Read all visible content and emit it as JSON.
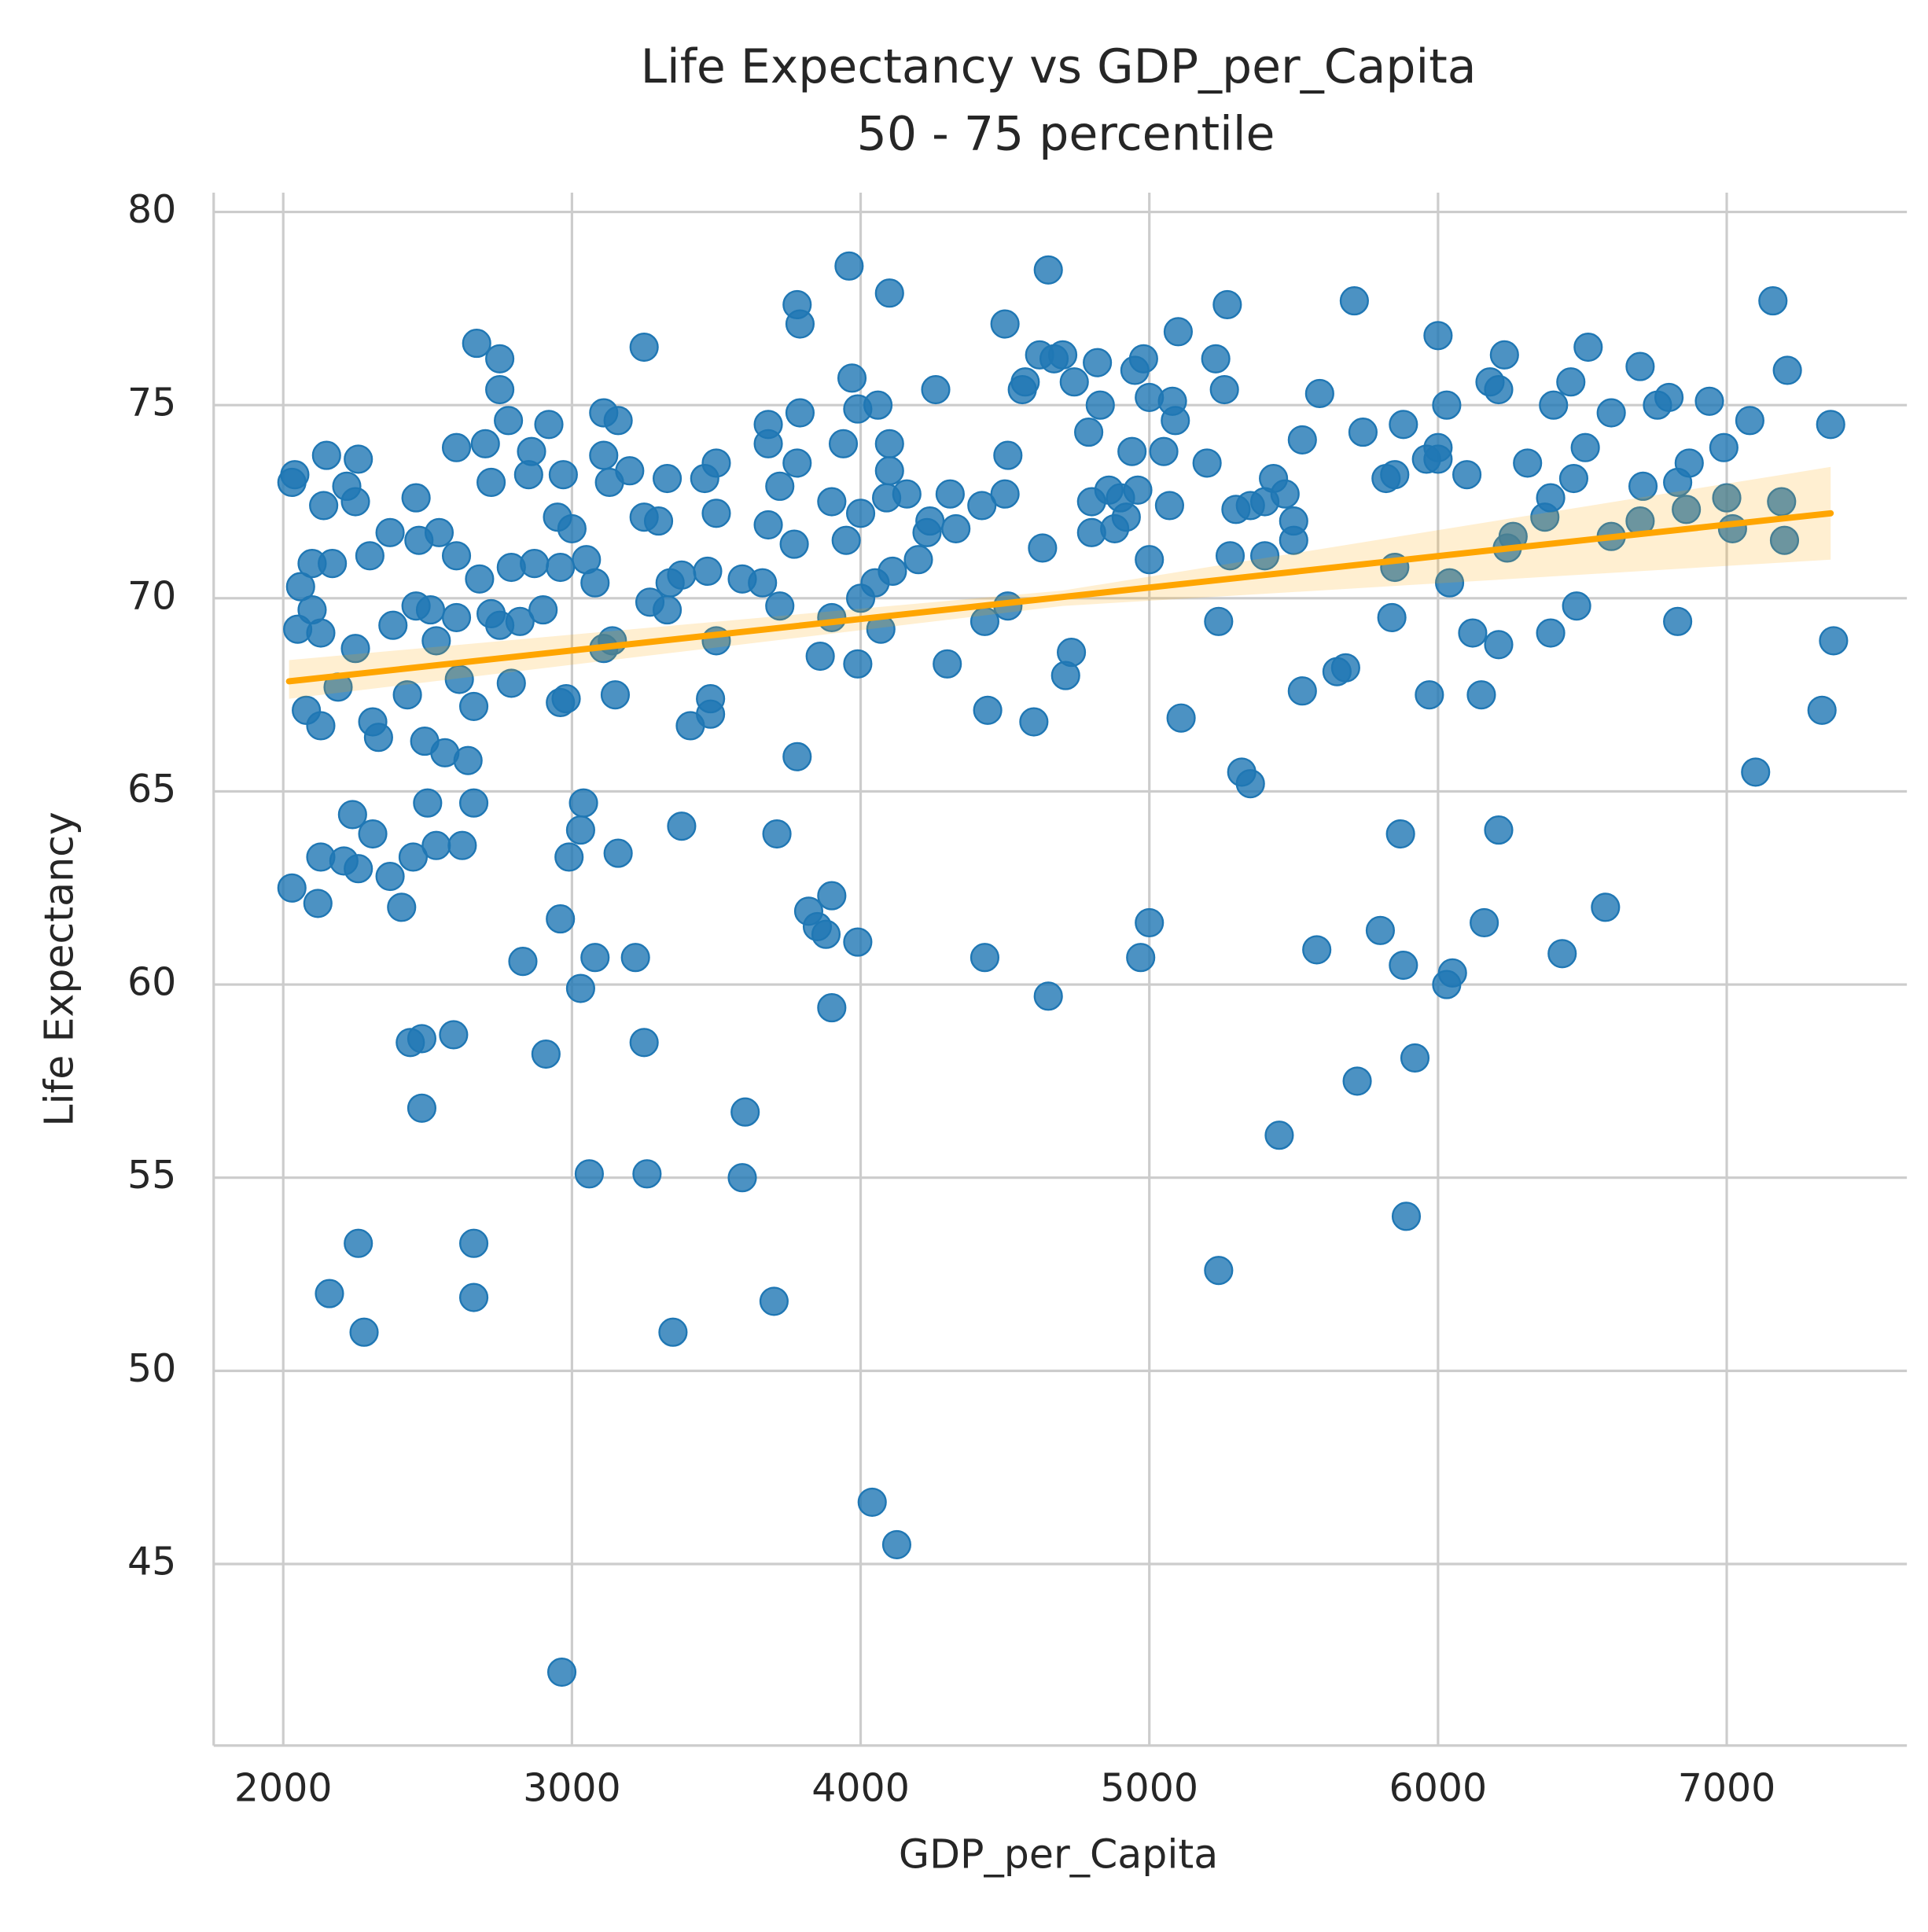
{
  "chart_data": {
    "type": "scatter",
    "title": "Life Expectancy vs GDP_per_Capita",
    "subtitle": "50 - 75 percentile",
    "x_label": "GDP_per_Capita",
    "y_label": "Life Expectancy",
    "color": "#1f77b4",
    "grid": true,
    "xlim": [
      1759,
      7624
    ],
    "ylim": [
      40.3,
      80.5
    ],
    "xticks": [
      2000,
      3000,
      4000,
      5000,
      6000,
      7000
    ],
    "yticks": [
      45,
      50,
      55,
      60,
      65,
      70,
      75,
      80
    ],
    "x": [
      2965,
      4040,
      4125,
      2280,
      2160,
      2660,
      2260,
      2660,
      3350,
      3700,
      5240,
      5890,
      3060,
      3260,
      3590,
      3600,
      5450,
      5720,
      5920,
      2480,
      2440,
      2480,
      2590,
      2910,
      3250,
      3900,
      4650,
      3030,
      6030,
      6050,
      5880,
      2830,
      3080,
      3220,
      4430,
      4970,
      6430,
      5580,
      3990,
      5800,
      6160,
      5000,
      2960,
      3820,
      3850,
      3880,
      3900,
      6580,
      2030,
      2120,
      2410,
      2370,
      2130,
      2210,
      2260,
      2450,
      2530,
      2620,
      2310,
      2240,
      2990,
      3030,
      3160,
      3040,
      3380,
      3710,
      5870,
      6210,
      2500,
      2660,
      5320,
      5350,
      7100,
      3780,
      2640,
      2560,
      2490,
      2330,
      2310,
      2430,
      2130,
      2080,
      2190,
      2660,
      2790,
      2610,
      2960,
      2980,
      3150,
      3410,
      3480,
      3480,
      4440,
      4600,
      5110,
      5530,
      5650,
      5680,
      5970,
      6150,
      7330,
      7370,
      4710,
      4730,
      4300,
      3990,
      3860,
      6210,
      6390,
      6480,
      6120,
      5840,
      5240,
      4430,
      4510,
      6830,
      6040,
      5850,
      5000,
      5280,
      5400,
      5500,
      4630,
      4800,
      4880,
      4200,
      4230,
      4330,
      3950,
      3770,
      3680,
      3720,
      3500,
      3330,
      3110,
      3140,
      3270,
      2900,
      2820,
      2720,
      2750,
      2600,
      2460,
      2510,
      2380,
      2530,
      2250,
      2050,
      2130,
      2100,
      2060,
      2100,
      2170,
      2300,
      2370,
      2470,
      2540,
      2600,
      2680,
      2790,
      2870,
      2960,
      3050,
      3080,
      3340,
      3380,
      3470,
      3590,
      3660,
      4050,
      4110,
      4000,
      3900,
      4070,
      2030,
      2040,
      2150,
      2260,
      2220,
      2250,
      2140,
      2460,
      2600,
      2700,
      2720,
      2780,
      2860,
      2920,
      2850,
      2970,
      2750,
      2750,
      2670,
      2950,
      3000,
      3110,
      3130,
      3110,
      3160,
      3200,
      3250,
      3300,
      3330,
      3250,
      3460,
      3500,
      3500,
      3680,
      3680,
      3720,
      3780,
      3790,
      3790,
      3780,
      3900,
      3940,
      3970,
      3990,
      3960,
      4060,
      4100,
      4100,
      4090,
      4100,
      4000,
      4160,
      4240,
      4260,
      4310,
      4420,
      4500,
      4510,
      4500,
      4560,
      4570,
      4620,
      4670,
      4700,
      4650,
      4740,
      4790,
      4820,
      4830,
      4800,
      4860,
      4900,
      4920,
      4940,
      4950,
      4980,
      5000,
      4960,
      5050,
      5070,
      5080,
      5090,
      5100,
      5200,
      5230,
      5260,
      5270,
      5300,
      5350,
      5400,
      5430,
      5470,
      5500,
      5530,
      5590,
      5740,
      5710,
      5820,
      5850,
      5880,
      5960,
      6000,
      6000,
      6000,
      6030,
      6100,
      6180,
      6210,
      6230,
      6240,
      6260,
      6310,
      6370,
      6390,
      6400,
      6460,
      6470,
      6510,
      6520,
      6600,
      6600,
      6700,
      6710,
      6700,
      6760,
      6800,
      6830,
      6860,
      6870,
      6940,
      6990,
      7000,
      7020,
      7080,
      7160,
      7190,
      7200,
      7210,
      7360
    ],
    "values": [
      42.2,
      46.6,
      45.5,
      51.0,
      52.0,
      51.9,
      53.3,
      53.3,
      51.0,
      51.8,
      52.6,
      54.0,
      55.1,
      55.1,
      55.0,
      56.7,
      56.1,
      57.5,
      58.1,
      56.8,
      58.5,
      58.6,
      58.7,
      58.2,
      58.5,
      59.4,
      59.7,
      59.9,
      60.0,
      60.3,
      60.5,
      60.6,
      60.7,
      60.7,
      60.7,
      60.7,
      60.8,
      60.9,
      61.1,
      61.4,
      61.6,
      61.6,
      61.7,
      61.9,
      61.5,
      61.3,
      62.3,
      62.0,
      62.5,
      62.1,
      62.0,
      62.8,
      63.3,
      63.2,
      63.0,
      63.3,
      63.6,
      63.6,
      63.9,
      64.4,
      63.3,
      64.0,
      63.4,
      64.7,
      64.1,
      63.9,
      63.9,
      64.0,
      64.7,
      64.7,
      65.5,
      65.2,
      65.5,
      65.9,
      65.8,
      66.0,
      66.3,
      66.4,
      66.8,
      67.5,
      66.7,
      67.1,
      67.7,
      67.2,
      67.8,
      67.9,
      67.3,
      67.4,
      67.5,
      66.7,
      67.0,
      67.4,
      67.1,
      66.8,
      66.9,
      67.6,
      68.1,
      68.2,
      67.5,
      67.5,
      67.1,
      68.9,
      68.0,
      68.6,
      68.3,
      68.3,
      68.5,
      68.8,
      69.1,
      69.8,
      69.1,
      69.5,
      69.4,
      69.4,
      69.8,
      69.4,
      70.4,
      70.8,
      71.0,
      71.1,
      71.1,
      71.5,
      71.3,
      71.7,
      71.8,
      71.0,
      71.7,
      71.8,
      71.5,
      71.4,
      71.9,
      69.8,
      68.9,
      69.7,
      68.7,
      68.9,
      69.9,
      69.7,
      69.4,
      69.6,
      69.3,
      69.5,
      69.8,
      69.7,
      69.3,
      68.9,
      68.7,
      69.2,
      69.1,
      69.7,
      70.3,
      70.9,
      70.9,
      71.1,
      71.7,
      71.5,
      71.7,
      71.1,
      70.5,
      70.8,
      70.9,
      70.8,
      71.0,
      70.4,
      70.4,
      70.6,
      70.7,
      70.5,
      70.4,
      70.4,
      70.7,
      70.0,
      69.5,
      69.2,
      73.0,
      73.2,
      73.7,
      73.6,
      72.9,
      72.5,
      72.4,
      72.6,
      73.9,
      74.0,
      73.0,
      74.6,
      73.8,
      74.5,
      73.2,
      73.2,
      75.4,
      76.2,
      76.6,
      72.1,
      71.8,
      73.7,
      73.0,
      74.8,
      74.6,
      73.3,
      72.1,
      72.0,
      73.1,
      76.5,
      73.1,
      73.5,
      72.2,
      74.0,
      74.5,
      72.9,
      73.5,
      74.8,
      77.1,
      77.6,
      72.5,
      74.0,
      75.7,
      74.9,
      78.6,
      75.0,
      74.0,
      73.3,
      72.6,
      77.9,
      72.2,
      72.7,
      72.0,
      75.4,
      72.7,
      72.4,
      72.7,
      73.7,
      77.1,
      75.4,
      75.6,
      76.3,
      76.2,
      76.3,
      78.5,
      75.6,
      74.3,
      76.1,
      75.0,
      72.5,
      72.8,
      72.6,
      72.1,
      73.8,
      75.9,
      76.2,
      75.2,
      72.8,
      73.8,
      72.4,
      75.1,
      74.6,
      76.9,
      73.5,
      76.2,
      75.4,
      77.6,
      72.3,
      72.4,
      72.5,
      73.1,
      72.7,
      72.0,
      74.1,
      75.3,
      74.3,
      77.7,
      73.1,
      73.2,
      74.5,
      73.6,
      73.9,
      73.6,
      76.8,
      75.0,
      73.2,
      75.6,
      75.4,
      76.3,
      71.3,
      71.6,
      73.5,
      72.1,
      72.6,
      75.0,
      75.6,
      73.1,
      73.9,
      76.5,
      74.8,
      71.6,
      76.0,
      72.9,
      72.0,
      75.0,
      75.2,
      73.0,
      72.3,
      73.5,
      75.1,
      73.9,
      72.6,
      71.8,
      74.6,
      77.7,
      72.5,
      71.5,
      75.9,
      74.5
    ],
    "regression": {
      "color": "#ffa500",
      "x": [
        2020,
        7360
      ],
      "values": [
        67.85,
        72.2
      ],
      "ci_x": [
        2020,
        4700,
        7360
      ],
      "ci_lower": [
        67.4,
        69.8,
        71.0
      ],
      "ci_upper": [
        68.4,
        70.2,
        73.4
      ]
    }
  }
}
